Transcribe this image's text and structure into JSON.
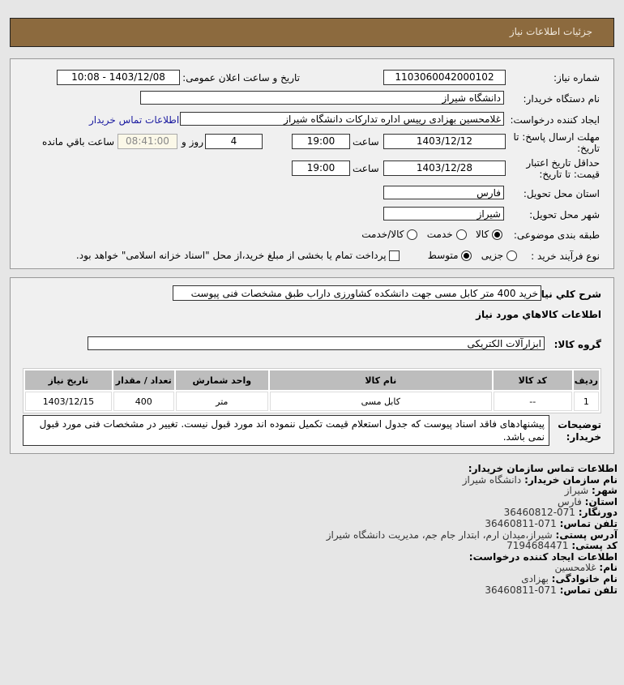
{
  "header": {
    "title": "جزئیات اطلاعات نیاز"
  },
  "form": {
    "need_number_label": "شماره نیاز:",
    "need_number": "1103060042000102",
    "announce_label": "تاریخ و ساعت اعلان عمومی:",
    "announce_value": "1403/12/08 - 10:08",
    "buyer_org_label": "نام دستگاه خریدار:",
    "buyer_org": "دانشگاه شیراز",
    "creator_label": "ایجاد کننده درخواست:",
    "creator": "غلامحسین بهزادی رییس اداره تدارکات دانشگاه شیراز",
    "contact_link": "اطلاعات تماس خریدار",
    "deadline_label": "مهلت ارسال پاسخ: تا تاریخ:",
    "deadline_date": "1403/12/12",
    "time_label": "ساعت",
    "deadline_time": "19:00",
    "days": "4",
    "days_label": "روز و",
    "remaining": "08:41:00",
    "remaining_label": "ساعت باقي مانده",
    "validity_label": "حداقل تاریخ اعتبار قیمت: تا تاریخ:",
    "validity_date": "1403/12/28",
    "validity_time": "19:00",
    "province_label": "استان محل تحویل:",
    "province": "فارس",
    "city_label": "شهر محل تحویل:",
    "city": "شیراز",
    "category_label": "طبقه بندی موضوعی:",
    "category_options": [
      "کالا",
      "خدمت",
      "کالا/خدمت"
    ],
    "category_selected": "کالا",
    "process_label": "نوع فرآیند خرید :",
    "process_options": [
      "جزیی",
      "متوسط"
    ],
    "process_selected": "متوسط",
    "payment_note": "پرداخت تمام یا بخشی از مبلغ خرید،از محل \"اسناد خزانه اسلامی\" خواهد بود.",
    "payment_checked": false
  },
  "details": {
    "summary_label": "شرح کلي نیاز:",
    "summary": "خرید 400 متر کابل مسی جهت دانشکده کشاورزی داراب طبق مشخصات فنی پیوست",
    "goods_heading": "اطلاعات کالاهاي مورد نیاز",
    "group_label": "گروه کالا:",
    "group": "ابزارآلات الکتریکی",
    "table": {
      "headers": [
        "ردیف",
        "کد کالا",
        "نام کالا",
        "واحد شمارش",
        "تعداد / مقدار",
        "تاریخ نیاز"
      ],
      "rows": [
        [
          "1",
          "--",
          "کابل مسی",
          "متر",
          "400",
          "1403/12/15"
        ]
      ]
    },
    "notes_label": "توضیحات خریدار:",
    "notes": "پیشنهادهای فاقد اسناد پیوست که جدول استعلام قیمت تکمیل ننموده اند مورد قبول نیست. تغییر در مشخصات فنی مورد قبول نمی باشد."
  },
  "contact": {
    "heading": "اطلاعات تماس سازمان خریدار:",
    "items": [
      [
        "نام سازمان خریدار:",
        "دانشگاه شیراز"
      ],
      [
        "شهر:",
        "شیراز"
      ],
      [
        "استان:",
        "فارس"
      ],
      [
        "دورنگار:",
        "071-36460812"
      ],
      [
        "تلفن تماس:",
        "071-36460811"
      ],
      [
        "آدرس پستی:",
        "شیراز،میدان ارم، ابتدار جام جم، مدیریت دانشگاه شیراز"
      ],
      [
        "کد پستی:",
        "7194684471"
      ]
    ],
    "creator_heading": "اطلاعات ایجاد کننده درخواست:",
    "creator_items": [
      [
        "نام:",
        "غلامحسین"
      ],
      [
        "نام خانوادگی:",
        "بهزادی"
      ],
      [
        "تلفن تماس:",
        "071-36460811"
      ]
    ]
  },
  "colors": {
    "header": "#8c6a3e",
    "link": "#1a1aa0",
    "remaining_bg": "#fbf8e8"
  }
}
